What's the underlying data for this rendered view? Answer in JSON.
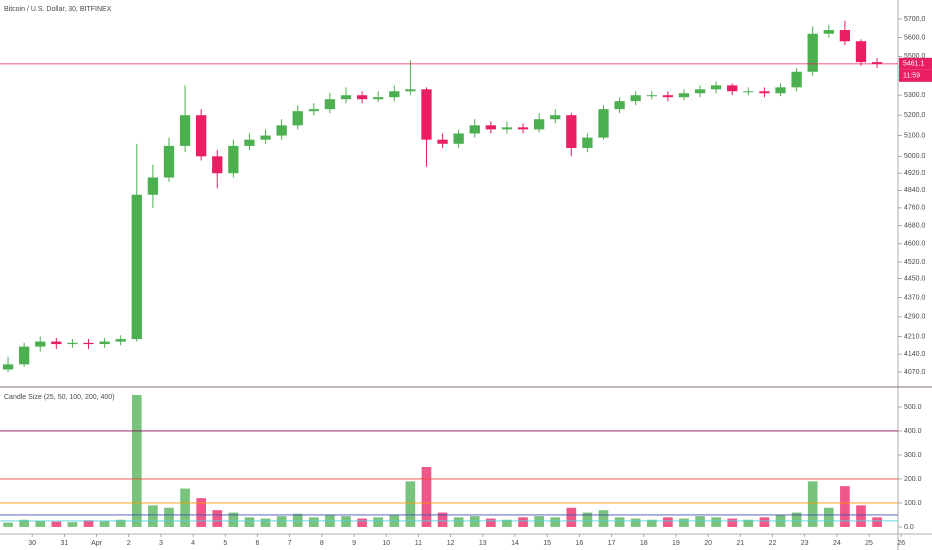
{
  "chart_data": [
    {
      "type": "candlestick",
      "title": "Bitcoin / U.S. Dollar, 30, BITFINEX",
      "x": [
        -0.75,
        -0.25,
        0.25,
        0.75,
        1.25,
        1.75,
        2.25,
        2.75,
        3.25,
        3.75,
        4.25,
        4.75,
        5.25,
        5.75,
        6.25,
        6.75,
        7.25,
        7.75,
        8.25,
        8.75,
        9.25,
        9.75,
        10.25,
        10.75,
        11.25,
        11.75,
        12.25,
        12.75,
        13.25,
        13.75,
        14.25,
        14.75,
        15.25,
        15.75,
        16.25,
        16.75,
        17.25,
        17.75,
        18.25,
        18.75,
        19.25,
        19.75,
        20.25,
        20.75,
        21.25,
        21.75,
        22.25,
        22.75,
        23.25,
        23.75,
        24.25,
        24.75,
        25.25,
        25.75,
        26.25
      ],
      "open": [
        4080,
        4100,
        4170,
        4190,
        4180,
        4185,
        4180,
        4190,
        4200,
        4820,
        4900,
        5050,
        5200,
        5000,
        4920,
        5050,
        5080,
        5100,
        5150,
        5220,
        5230,
        5280,
        5300,
        5280,
        5290,
        5320,
        5330,
        5080,
        5060,
        5110,
        5150,
        5130,
        5140,
        5130,
        5180,
        5200,
        5040,
        5090,
        5230,
        5270,
        5300,
        5300,
        5290,
        5310,
        5330,
        5350,
        5320,
        5320,
        5310,
        5340,
        5420,
        5620,
        5640,
        5580,
        5470
      ],
      "high": [
        4130,
        4185,
        4210,
        4205,
        4200,
        4200,
        4205,
        4215,
        5060,
        4960,
        5090,
        5350,
        5230,
        5030,
        5080,
        5110,
        5130,
        5180,
        5250,
        5260,
        5310,
        5340,
        5320,
        5320,
        5350,
        5480,
        5340,
        5110,
        5130,
        5180,
        5170,
        5170,
        5160,
        5210,
        5230,
        5210,
        5110,
        5250,
        5290,
        5320,
        5320,
        5320,
        5330,
        5350,
        5370,
        5360,
        5340,
        5340,
        5360,
        5440,
        5660,
        5670,
        5690,
        5590,
        5490
      ],
      "low": [
        4070,
        4090,
        4150,
        4160,
        4165,
        4160,
        4165,
        4175,
        4190,
        4760,
        4880,
        5020,
        4980,
        4850,
        4900,
        5030,
        5060,
        5080,
        5130,
        5200,
        5210,
        5260,
        5260,
        5265,
        5270,
        5300,
        4950,
        5040,
        5040,
        5090,
        5110,
        5110,
        5110,
        5115,
        5160,
        5000,
        5020,
        5080,
        5210,
        5250,
        5280,
        5270,
        5275,
        5290,
        5310,
        5300,
        5300,
        5290,
        5295,
        5320,
        5400,
        5600,
        5560,
        5450,
        5440
      ],
      "close": [
        4100,
        4170,
        4190,
        4180,
        4185,
        4180,
        4190,
        4200,
        4820,
        4900,
        5050,
        5200,
        5000,
        4920,
        5050,
        5080,
        5100,
        5150,
        5220,
        5230,
        5280,
        5300,
        5280,
        5290,
        5320,
        5330,
        5080,
        5060,
        5110,
        5150,
        5130,
        5140,
        5130,
        5180,
        5200,
        5040,
        5090,
        5230,
        5270,
        5300,
        5300,
        5290,
        5310,
        5330,
        5350,
        5320,
        5320,
        5310,
        5340,
        5420,
        5620,
        5640,
        5580,
        5470,
        5461.1
      ],
      "up_color": "#4caf50",
      "down_color": "#e91e63",
      "xlim": [
        -1,
        26.9
      ],
      "ylim": [
        4020,
        5804
      ],
      "log_scale": true,
      "yticks": [
        {
          "value": 4070,
          "label": "4070.0"
        },
        {
          "value": 4140,
          "label": "4140.0"
        },
        {
          "value": 4210,
          "label": "4210.0"
        },
        {
          "value": 4290,
          "label": "4290.0"
        },
        {
          "value": 4370,
          "label": "4370.0"
        },
        {
          "value": 4450,
          "label": "4450.0"
        },
        {
          "value": 4520,
          "label": "4520.0"
        },
        {
          "value": 4600,
          "label": "4600.0"
        },
        {
          "value": 4680,
          "label": "4680.0"
        },
        {
          "value": 4760,
          "label": "4760.0"
        },
        {
          "value": 4840,
          "label": "4840.0"
        },
        {
          "value": 4920,
          "label": "4920.0"
        },
        {
          "value": 5000,
          "label": "5000.0"
        },
        {
          "value": 5100,
          "label": "5100.0"
        },
        {
          "value": 5200,
          "label": "5200.0"
        },
        {
          "value": 5300,
          "label": "5300.0"
        },
        {
          "value": 5400,
          "label": "5400.0"
        },
        {
          "value": 5500,
          "label": "5500.0"
        },
        {
          "value": 5600,
          "label": "5600.0"
        },
        {
          "value": 5700,
          "label": "5700.0"
        }
      ],
      "last_price": 5461.1,
      "countdown": "11:59"
    },
    {
      "type": "bar",
      "title": "Candle Size (25, 50, 100, 200, 400)",
      "x": [
        -0.75,
        -0.25,
        0.25,
        0.75,
        1.25,
        1.75,
        2.25,
        2.75,
        3.25,
        3.75,
        4.25,
        4.75,
        5.25,
        5.75,
        6.25,
        6.75,
        7.25,
        7.75,
        8.25,
        8.75,
        9.25,
        9.75,
        10.25,
        10.75,
        11.25,
        11.75,
        12.25,
        12.75,
        13.25,
        13.75,
        14.25,
        14.75,
        15.25,
        15.75,
        16.25,
        16.75,
        17.25,
        17.75,
        18.25,
        18.75,
        19.25,
        19.75,
        20.25,
        20.75,
        21.25,
        21.75,
        22.25,
        22.75,
        23.25,
        23.75,
        24.25,
        24.75,
        25.25,
        25.75,
        26.25
      ],
      "values": [
        18,
        30,
        25,
        22,
        20,
        28,
        24,
        30,
        550,
        90,
        80,
        160,
        120,
        70,
        60,
        40,
        35,
        45,
        55,
        40,
        50,
        45,
        35,
        40,
        50,
        190,
        250,
        60,
        40,
        45,
        35,
        30,
        40,
        45,
        40,
        80,
        60,
        70,
        40,
        35,
        30,
        40,
        35,
        45,
        40,
        35,
        30,
        40,
        50,
        60,
        190,
        80,
        170,
        90,
        40
      ],
      "levels": [
        {
          "value": 25,
          "color": "#4dd0e1"
        },
        {
          "value": 50,
          "color": "#3f51b5"
        },
        {
          "value": 100,
          "color": "#ff9800"
        },
        {
          "value": 200,
          "color": "#f44336"
        },
        {
          "value": 400,
          "color": "#880e4f"
        }
      ],
      "xlim": [
        -1,
        26.9
      ],
      "ylim": [
        -21,
        579
      ],
      "yticks": [
        {
          "value": 0,
          "label": "0.0"
        },
        {
          "value": 100,
          "label": "100.0"
        },
        {
          "value": 200,
          "label": "200.0"
        },
        {
          "value": 300,
          "label": "300.0"
        },
        {
          "value": 400,
          "label": "400.0"
        },
        {
          "value": 500,
          "label": "500.0"
        }
      ],
      "xticks": [
        {
          "value": 0,
          "label": "30"
        },
        {
          "value": 1,
          "label": "31"
        },
        {
          "value": 2,
          "label": "Apr"
        },
        {
          "value": 3,
          "label": "2"
        },
        {
          "value": 4,
          "label": "3"
        },
        {
          "value": 5,
          "label": "4"
        },
        {
          "value": 6,
          "label": "5"
        },
        {
          "value": 7,
          "label": "6"
        },
        {
          "value": 8,
          "label": "7"
        },
        {
          "value": 9,
          "label": "8"
        },
        {
          "value": 10,
          "label": "9"
        },
        {
          "value": 11,
          "label": "10"
        },
        {
          "value": 12,
          "label": "11"
        },
        {
          "value": 13,
          "label": "12"
        },
        {
          "value": 14,
          "label": "13"
        },
        {
          "value": 15,
          "label": "14"
        },
        {
          "value": 16,
          "label": "15"
        },
        {
          "value": 17,
          "label": "16"
        },
        {
          "value": 18,
          "label": "17"
        },
        {
          "value": 19,
          "label": "18"
        },
        {
          "value": 20,
          "label": "19"
        },
        {
          "value": 21,
          "label": "20"
        },
        {
          "value": 22,
          "label": "21"
        },
        {
          "value": 23,
          "label": "22"
        },
        {
          "value": 24,
          "label": "23"
        },
        {
          "value": 25,
          "label": "24"
        },
        {
          "value": 26,
          "label": "25"
        },
        {
          "value": 27,
          "label": "26"
        }
      ]
    }
  ]
}
